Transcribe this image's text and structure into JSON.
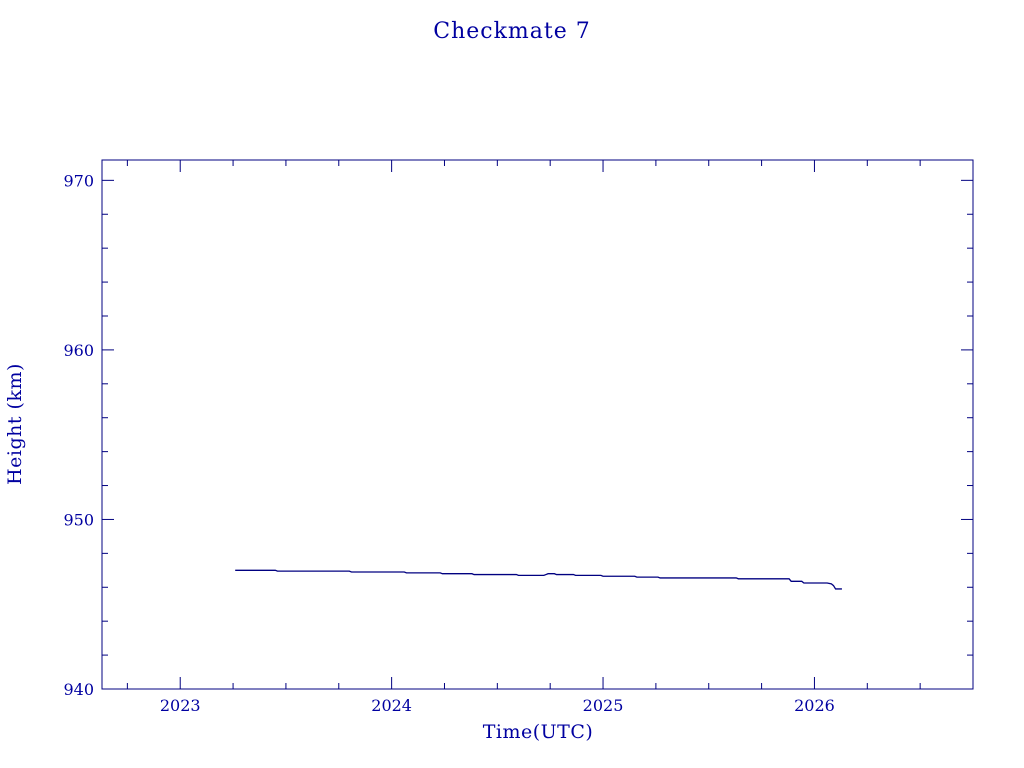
{
  "chart_data": {
    "type": "line",
    "title": "Checkmate 7",
    "xlabel": "Time(UTC)",
    "ylabel": "Height (km)",
    "xlim": [
      2022.63,
      2026.75
    ],
    "ylim": [
      940,
      971.2
    ],
    "x_ticks": [
      {
        "value": 2023,
        "label": "2023"
      },
      {
        "value": 2024,
        "label": "2024"
      },
      {
        "value": 2025,
        "label": "2025"
      },
      {
        "value": 2026,
        "label": "2026"
      }
    ],
    "y_ticks": [
      {
        "value": 940,
        "label": "940"
      },
      {
        "value": 950,
        "label": "950"
      },
      {
        "value": 960,
        "label": "960"
      },
      {
        "value": 970,
        "label": "970"
      }
    ],
    "grid": false,
    "colors": {
      "axis": "#000080",
      "text": "#0000a0",
      "series": "#000080"
    },
    "series": [
      {
        "x": [
          2023.26,
          2023.45,
          2023.46,
          2023.8,
          2023.81,
          2024.06,
          2024.07,
          2024.23,
          2024.24,
          2024.38,
          2024.39,
          2024.59,
          2024.6,
          2024.68,
          2024.72,
          2024.73,
          2024.74,
          2024.75,
          2024.77,
          2024.78,
          2024.86,
          2024.87,
          2024.99,
          2025.0,
          2025.15,
          2025.16,
          2025.26,
          2025.27,
          2025.63,
          2025.64,
          2025.88,
          2025.89,
          2025.94,
          2025.95,
          2026.06,
          2026.08,
          2026.09,
          2026.1,
          2026.13
        ],
        "y": [
          947.0,
          947.0,
          946.95,
          946.95,
          946.9,
          946.9,
          946.85,
          946.85,
          946.8,
          946.8,
          946.75,
          946.75,
          946.7,
          946.7,
          946.7,
          946.75,
          946.8,
          946.8,
          946.8,
          946.75,
          946.75,
          946.7,
          946.7,
          946.65,
          946.65,
          946.6,
          946.6,
          946.55,
          946.55,
          946.5,
          946.5,
          946.35,
          946.35,
          946.25,
          946.25,
          946.2,
          946.1,
          945.9,
          945.9
        ]
      }
    ]
  }
}
